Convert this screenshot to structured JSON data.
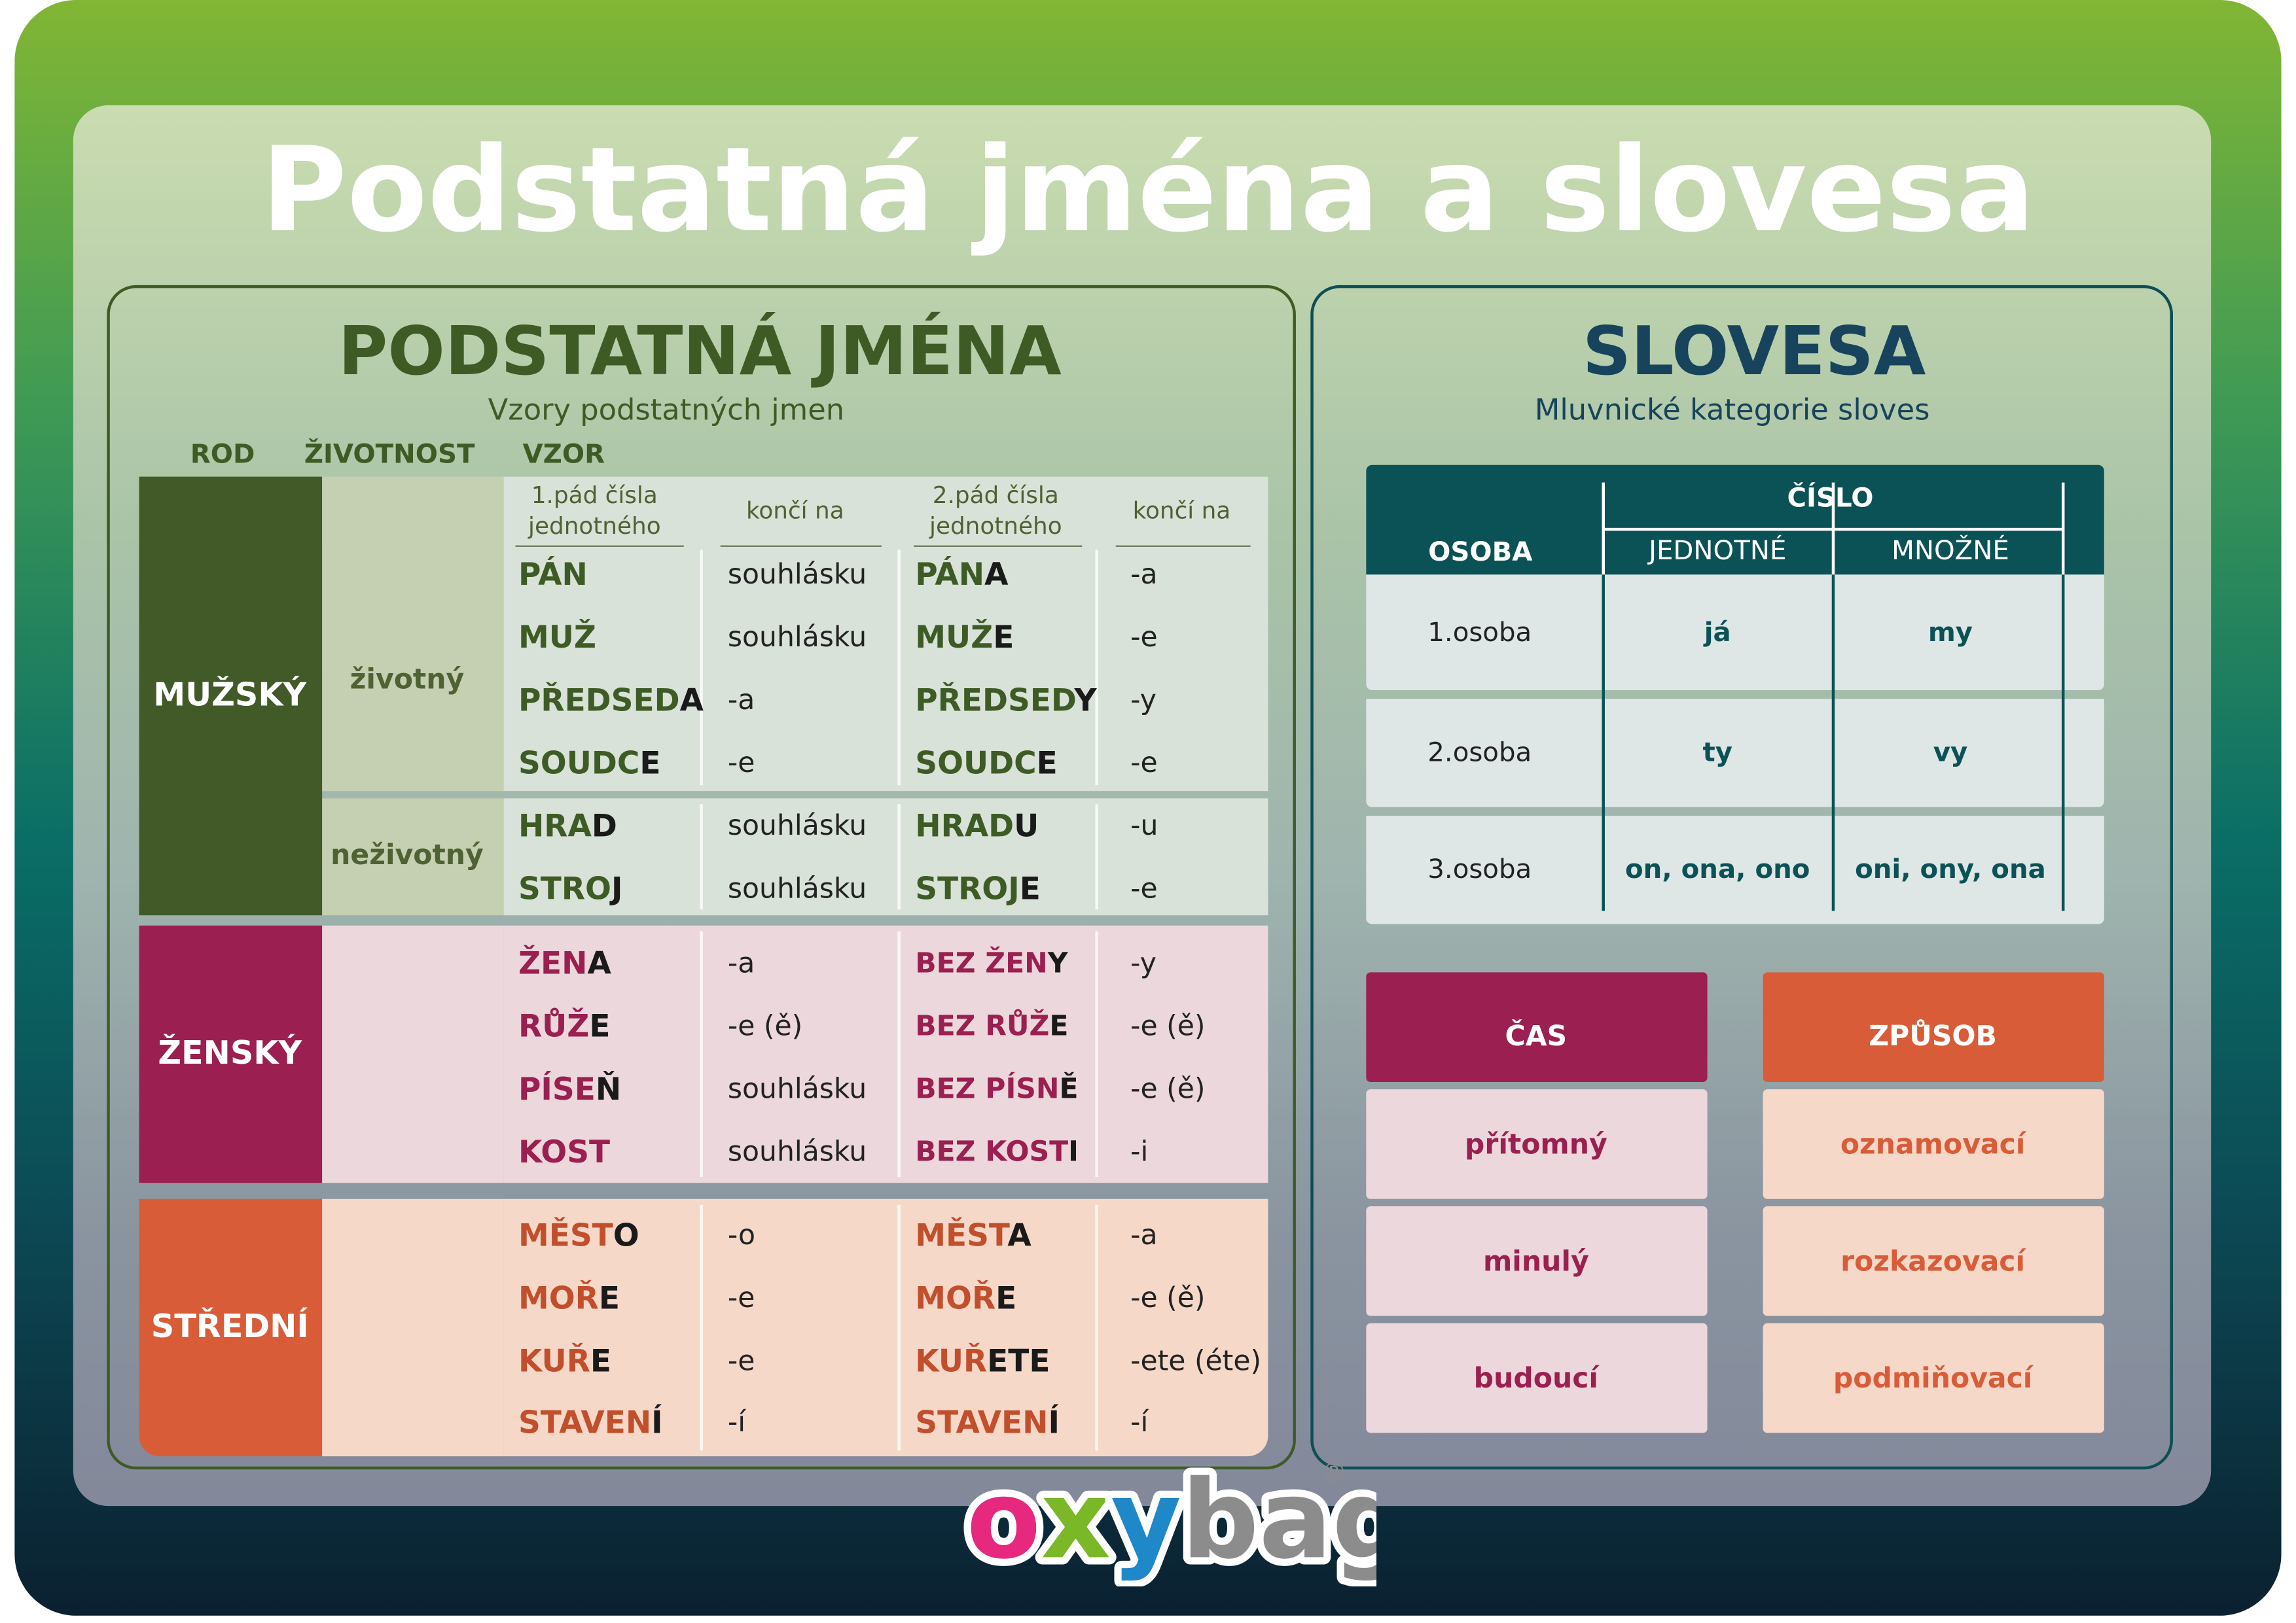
{
  "title": "Podstatná jména a slovesa",
  "nouns": {
    "heading": "PODSTATNÁ JMÉNA",
    "subtitle": "Vzory podstatných jmen",
    "columns": [
      "ROD",
      "ŽIVOTNOST",
      "VZOR"
    ],
    "subheaders": [
      "1.pád čísla jednotného",
      "končí na",
      "2.pád čísla jednotného",
      "končí na"
    ],
    "genders": [
      {
        "name": "MUŽSKÝ",
        "groups": [
          {
            "label": "životný",
            "rows": [
              {
                "nom": [
                  "PÁN"
                ],
                "nom_end": "souhlásku",
                "gen": [
                  "PÁN",
                  "A"
                ],
                "gen_end": "-a"
              },
              {
                "nom": [
                  "MUŽ"
                ],
                "nom_end": "souhlásku",
                "gen": [
                  "MUŽ",
                  "E"
                ],
                "gen_end": "-e"
              },
              {
                "nom": [
                  "PŘEDSED",
                  "A"
                ],
                "nom_end": "-a",
                "gen": [
                  "PŘEDSED",
                  "Y"
                ],
                "gen_end": "-y"
              },
              {
                "nom": [
                  "SOUDC",
                  "E"
                ],
                "nom_end": "-e",
                "gen": [
                  "SOUDC",
                  "E"
                ],
                "gen_end": "-e"
              }
            ]
          },
          {
            "label": "neživotný",
            "rows": [
              {
                "nom": [
                  "HRA",
                  "D"
                ],
                "nom_end": "souhlásku",
                "gen": [
                  "HRAD",
                  "U"
                ],
                "gen_end": "-u"
              },
              {
                "nom": [
                  "STRO",
                  "J"
                ],
                "nom_end": "souhlásku",
                "gen": [
                  "STROJ",
                  "E"
                ],
                "gen_end": "-e"
              }
            ]
          }
        ]
      },
      {
        "name": "ŽENSKÝ",
        "groups": [
          {
            "rows": [
              {
                "nom": [
                  "ŽEN",
                  "A"
                ],
                "nom_end": "-a",
                "gen": [
                  "BEZ ŽEN",
                  "Y"
                ],
                "gen_end": "-y"
              },
              {
                "nom": [
                  "RŮŽ",
                  "E"
                ],
                "nom_end": "-e (ě)",
                "gen": [
                  "BEZ RŮŽ",
                  "E"
                ],
                "gen_end": "-e (ě)"
              },
              {
                "nom": [
                  "PÍSE",
                  "Ň"
                ],
                "nom_end": "souhlásku",
                "gen": [
                  "BEZ PÍSN",
                  "Ě"
                ],
                "gen_end": "-e (ě)"
              },
              {
                "nom": [
                  "KOST"
                ],
                "nom_end": "souhlásku",
                "gen": [
                  "BEZ KOST",
                  "I"
                ],
                "gen_end": "-i"
              }
            ]
          }
        ]
      },
      {
        "name": "STŘEDNÍ",
        "groups": [
          {
            "rows": [
              {
                "nom": [
                  "MĚST",
                  "O"
                ],
                "nom_end": "-o",
                "gen": [
                  "MĚST",
                  "A"
                ],
                "gen_end": "-a"
              },
              {
                "nom": [
                  "MOŘ",
                  "E"
                ],
                "nom_end": "-e",
                "gen": [
                  "MOŘ",
                  "E"
                ],
                "gen_end": "-e (ě)"
              },
              {
                "nom": [
                  "KUŘ",
                  "E"
                ],
                "nom_end": "-e",
                "gen": [
                  "KUŘ",
                  "ETE"
                ],
                "gen_end": "-ete (éte)"
              },
              {
                "nom": [
                  "STAVEN",
                  "Í"
                ],
                "nom_end": "-í",
                "gen": [
                  "STAVEN",
                  "Í"
                ],
                "gen_end": "-í"
              }
            ]
          }
        ]
      }
    ]
  },
  "verbs": {
    "heading": "SLOVESA",
    "subtitle": "Mluvnické kategorie sloves",
    "table": {
      "person": "OSOBA",
      "number": "ČÍSLO",
      "singular": "JEDNOTNÉ",
      "plural": "MNOŽNÉ",
      "rows": [
        [
          "1.osoba",
          "já",
          "my"
        ],
        [
          "2.osoba",
          "ty",
          "vy"
        ],
        [
          "3.osoba",
          "on, ona, ono",
          "oni, ony, ona"
        ]
      ]
    },
    "tense": {
      "label": "ČAS",
      "items": [
        "přítomný",
        "minulý",
        "budoucí"
      ]
    },
    "mood": {
      "label": "ZPŮSOB",
      "items": [
        "oznamovací",
        "rozkazovací",
        "podmiňovací"
      ]
    }
  },
  "logo": {
    "parts": [
      "o",
      "x",
      "y",
      "bag"
    ],
    "mark": "®"
  }
}
